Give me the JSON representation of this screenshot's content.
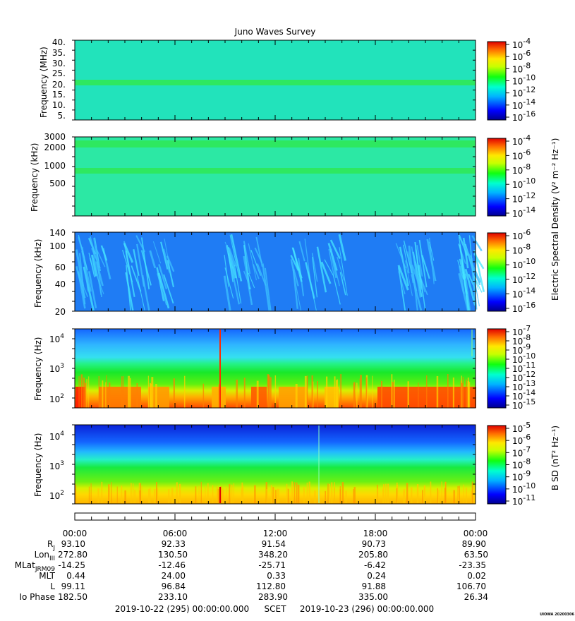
{
  "title": "Juno Waves Survey",
  "panels": [
    {
      "ylabel": "Frequency (MHz)",
      "yticks": [
        "40.",
        "35.",
        "30.",
        "25.",
        "20.",
        "15.",
        "10.",
        "5."
      ],
      "cbar_ticks": [
        "-4",
        "-6",
        "-8",
        "-10",
        "-12",
        "-14",
        "-16"
      ]
    },
    {
      "ylabel": "Frequency (kHz)",
      "yticks": [
        "3000",
        "2000",
        "1000",
        "500"
      ],
      "cbar_ticks": [
        "-4",
        "-6",
        "-8",
        "-10",
        "-12",
        "-14"
      ]
    },
    {
      "ylabel": "Frequency (kHz)",
      "yticks": [
        "140",
        "100",
        "60",
        "40",
        "20"
      ],
      "cbar_ticks": [
        "-6",
        "-8",
        "-10",
        "-12",
        "-14",
        "-16"
      ]
    },
    {
      "ylabel": "Frequency (Hz)",
      "yticks": [
        "4",
        "3",
        "2"
      ],
      "cbar_ticks": [
        "-7",
        "-8",
        "-9",
        "-10",
        "-11",
        "-12",
        "-13",
        "-14",
        "-15"
      ]
    },
    {
      "ylabel": "Frequency (Hz)",
      "yticks": [
        "4",
        "3",
        "2"
      ],
      "cbar_ticks": [
        "-5",
        "-6",
        "-7",
        "-8",
        "-9",
        "-10",
        "-11"
      ]
    }
  ],
  "colorbar_labels": {
    "electric": "Electric Spectral Density (V² m⁻² Hz⁻¹)",
    "magnetic": "B SD (nT² Hz⁻¹)"
  },
  "cbar_base": "10",
  "ytick_base": "10",
  "time_ticks": [
    "00:00",
    "06:00",
    "12:00",
    "18:00",
    "00:00"
  ],
  "ephemeris": [
    {
      "label": "R",
      "sub": "J",
      "values": [
        "93.10",
        "92.33",
        "91.54",
        "90.73",
        "89.90"
      ]
    },
    {
      "label": "Lon",
      "sub": "III",
      "values": [
        "272.80",
        "130.50",
        "348.20",
        "205.80",
        "63.50"
      ]
    },
    {
      "label": "MLat",
      "sub": "JRM09",
      "values": [
        "-14.25",
        "-12.46",
        "-25.71",
        "-6.42",
        "-23.35"
      ]
    },
    {
      "label": "MLT",
      "sub": "",
      "values": [
        "0.44",
        "24.00",
        "0.33",
        "0.24",
        "0.02"
      ]
    },
    {
      "label": "L",
      "sub": "",
      "values": [
        "99.11",
        "96.84",
        "112.80",
        "91.88",
        "106.70"
      ]
    },
    {
      "label": "Io Phase",
      "sub": "",
      "values": [
        "182.50",
        "233.10",
        "283.90",
        "335.00",
        "26.34"
      ]
    }
  ],
  "footer": {
    "start": "2019-10-22 (295) 00:00:00.000",
    "scet": "SCET",
    "end": "2019-10-23 (296) 00:00:00.000"
  },
  "stamp": "UIOWA 20200306",
  "colors": {
    "panel1_bg": "#22e3bb",
    "panel2_bg": "#2ce8a4",
    "panel3_bg": "#1f7cf4",
    "band_green": "#2ee860"
  },
  "chart_data": {
    "type": "heatmap",
    "title": "Juno Waves Survey",
    "x_range": [
      "2019-10-22 00:00",
      "2019-10-23 00:00"
    ],
    "x_ticks": [
      "00:00",
      "06:00",
      "12:00",
      "18:00",
      "00:00"
    ],
    "panels": [
      {
        "ylabel": "Frequency (MHz)",
        "ylim": [
          3,
          41
        ],
        "scale": "linear",
        "colorbar_range": [
          "1e-16",
          "1e-4"
        ],
        "bands": [
          {
            "freq": 21
          }
        ]
      },
      {
        "ylabel": "Frequency (kHz)",
        "ylim": [
          140,
          3000
        ],
        "scale": "log",
        "colorbar_range": [
          "1e-14",
          "1e-4"
        ],
        "bands": [
          {
            "freq": 2200
          },
          {
            "freq": 800
          }
        ]
      },
      {
        "ylabel": "Frequency (kHz)",
        "ylim": [
          20,
          140
        ],
        "scale": "log",
        "colorbar_range": [
          "1e-16",
          "1e-6"
        ]
      },
      {
        "ylabel": "Frequency (Hz)",
        "ylim": [
          50,
          20000
        ],
        "scale": "log",
        "colorbar_range": [
          "1e-15",
          "1e-7"
        ]
      },
      {
        "ylabel": "Frequency (Hz)",
        "ylim": [
          50,
          20000
        ],
        "scale": "log",
        "colorbar_range": [
          "1e-11",
          "1e-5"
        ]
      }
    ],
    "colorbar_label_electric": "Electric Spectral Density (V² m⁻² Hz⁻¹)",
    "colorbar_label_magnetic": "B SD (nT² Hz⁻¹)"
  }
}
